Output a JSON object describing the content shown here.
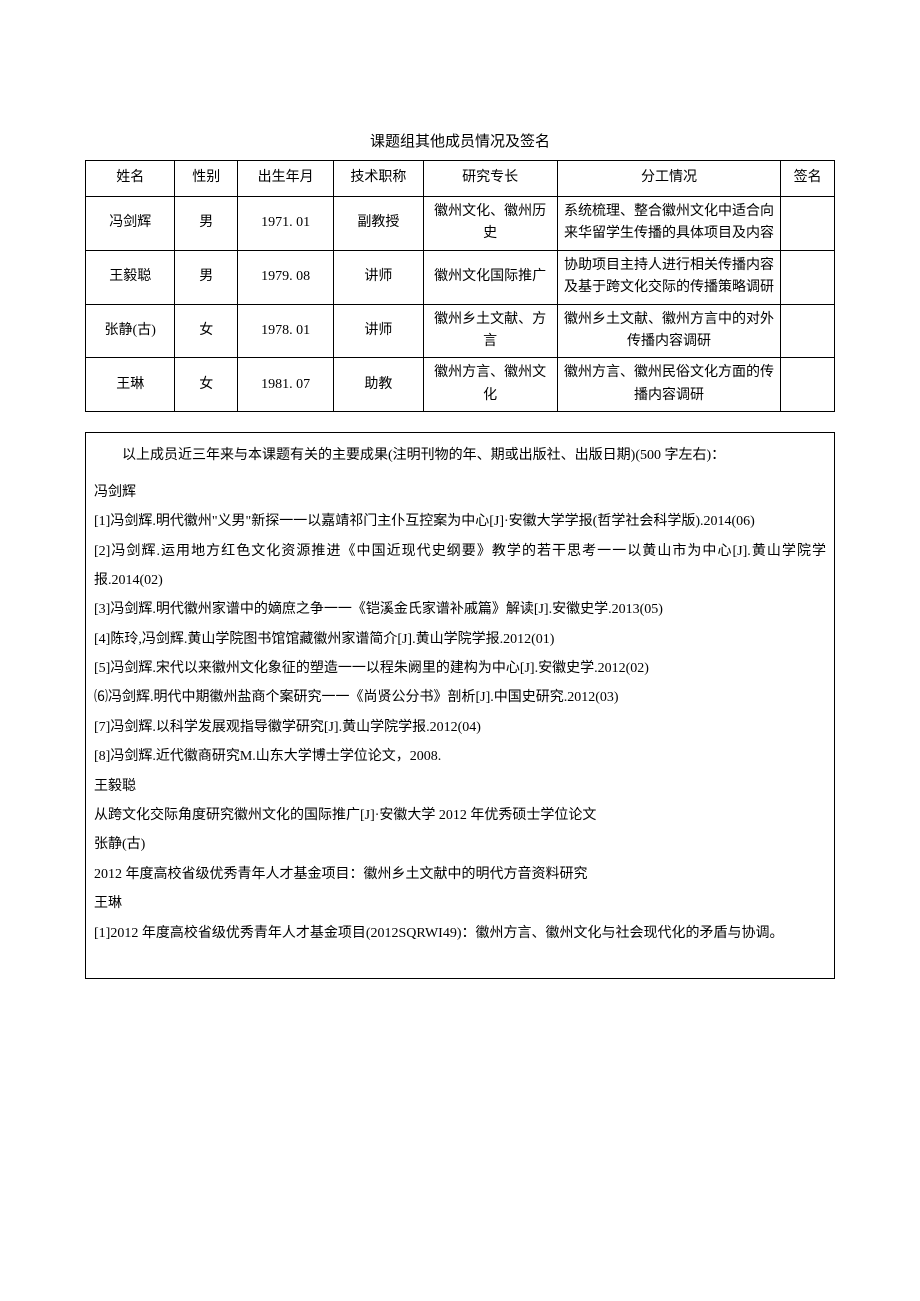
{
  "title": "课题组其他成员情况及签名",
  "table": {
    "headers": {
      "name": "姓名",
      "gender": "性别",
      "birth": "出生年月",
      "jobTitle": "技术职称",
      "specialty": "研究专长",
      "division": "分工情况",
      "signature": "签名"
    },
    "rows": [
      {
        "name": "冯剑辉",
        "gender": "男",
        "birth": "1971. 01",
        "jobTitle": "副教授",
        "specialty": "徽州文化、徽州历史",
        "division": "系统梳理、整合徽州文化中适合向来华留学生传播的具体项目及内容"
      },
      {
        "name": "王毅聪",
        "gender": "男",
        "birth": "1979. 08",
        "jobTitle": "讲师",
        "specialty": "徽州文化国际推广",
        "division": "协助项目主持人进行相关传播内容及基于跨文化交际的传播策略调研"
      },
      {
        "name": "张静(古)",
        "gender": "女",
        "birth": "1978. 01",
        "jobTitle": "讲师",
        "specialty": "徽州乡土文献、方言",
        "division": "徽州乡土文献、徽州方言中的对外传播内容调研"
      },
      {
        "name": "王琳",
        "gender": "女",
        "birth": "1981. 07",
        "jobTitle": "助教",
        "specialty": "徽州方言、徽州文化",
        "division": "徽州方言、徽州民俗文化方面的传播内容调研"
      }
    ]
  },
  "content": {
    "intro": "以上成员近三年来与本课题有关的主要成果(注明刊物的年、期或出版社、出版日期)(500 字左右)：",
    "sections": [
      {
        "name": "冯剑辉",
        "items": [
          "[1]冯剑辉.明代徽州\"义男\"新探一一以嘉靖祁门主仆互控案为中心[J]·安徽大学学报(哲学社会科学版).2014(06)",
          "[2]冯剑辉.运用地方红色文化资源推进《中国近现代史纲要》教学的若干思考一一以黄山市为中心[J].黄山学院学报.2014(02)",
          "[3]冯剑辉.明代徽州家谱中的嫡庶之争一一《铠溪金氏家谱补戚篇》解读[J].安徽史学.2013(05)",
          "[4]陈玲,冯剑辉.黄山学院图书馆馆藏徽州家谱简介[J].黄山学院学报.2012(01)",
          "[5]冯剑辉.宋代以来徽州文化象征的塑造一一以程朱阙里的建构为中心[J].安徽史学.2012(02)",
          "⑹冯剑辉.明代中期徽州盐商个案研究一一《尚贤公分书》剖析[J].中国史研究.2012(03)",
          "[7]冯剑辉.以科学发展观指导徽学研究[J].黄山学院学报.2012(04)",
          "[8]冯剑辉.近代徽商研究M.山东大学博士学位论文，2008."
        ]
      },
      {
        "name": "王毅聪",
        "items": [
          "从跨文化交际角度研究徽州文化的国际推广[J]·安徽大学 2012 年优秀硕士学位论文"
        ]
      },
      {
        "name": "张静(古)",
        "items": [
          "2012 年度高校省级优秀青年人才基金项目：徽州乡土文献中的明代方音资料研究"
        ]
      },
      {
        "name": "王琳",
        "items": [
          "[1]2012 年度高校省级优秀青年人才基金项目(2012SQRWI49)：徽州方言、徽州文化与社会现代化的矛盾与协调。"
        ]
      }
    ]
  }
}
